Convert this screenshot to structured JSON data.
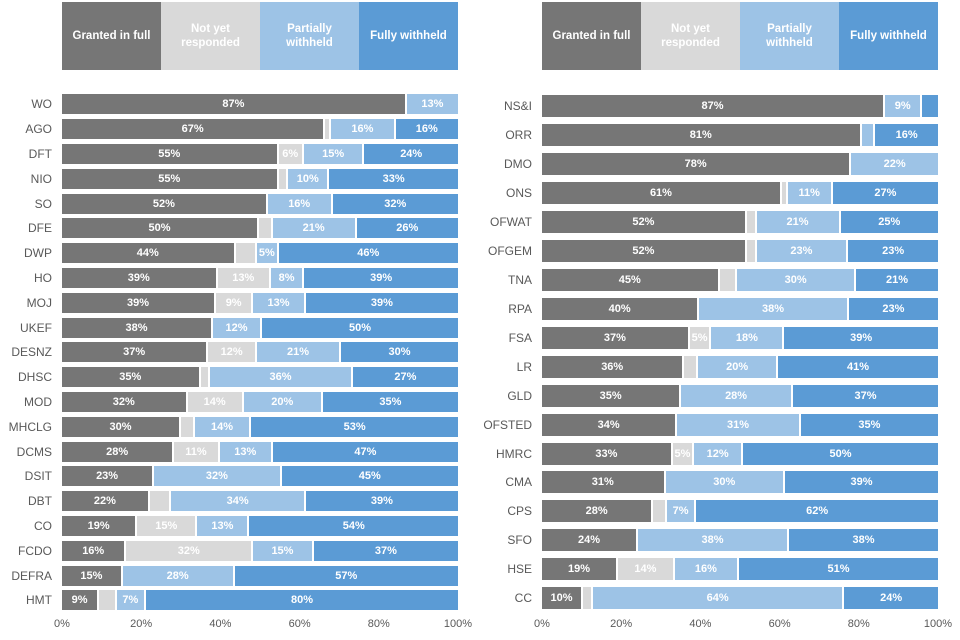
{
  "legend": [
    {
      "key": "granted-in-full",
      "label": "Granted in full",
      "color": "#767676",
      "text_color": "#ffffff"
    },
    {
      "key": "not-yet-responded",
      "label": "Not yet responded",
      "color": "#d9d9d9",
      "text_color": "#ffffff"
    },
    {
      "key": "partially-withheld",
      "label": "Partially withheld",
      "color": "#9dc3e6",
      "text_color": "#ffffff"
    },
    {
      "key": "fully-withheld",
      "label": "Fully withheld",
      "color": "#5b9bd5",
      "text_color": "#ffffff"
    }
  ],
  "axis_ticks": [
    "0%",
    "20%",
    "40%",
    "60%",
    "80%",
    "100%"
  ],
  "chart_data": [
    {
      "type": "bar",
      "orientation": "horizontal",
      "stacked": true,
      "xlim": [
        0,
        100
      ],
      "series_names": [
        "Granted in full",
        "Not yet responded",
        "Partially withheld",
        "Fully withheld"
      ],
      "rows": [
        {
          "category": "WO",
          "values": [
            87,
            0,
            13,
            0
          ],
          "labels": [
            "87%",
            "",
            "13%",
            ""
          ]
        },
        {
          "category": "AGO",
          "values": [
            67,
            1,
            16,
            16
          ],
          "labels": [
            "67%",
            "",
            "16%",
            "16%"
          ]
        },
        {
          "category": "DFT",
          "values": [
            55,
            6,
            15,
            24
          ],
          "labels": [
            "55%",
            "6%",
            "15%",
            "24%"
          ]
        },
        {
          "category": "NIO",
          "values": [
            55,
            2,
            10,
            33
          ],
          "labels": [
            "55%",
            "",
            "10%",
            "33%"
          ]
        },
        {
          "category": "SO",
          "values": [
            52,
            0,
            16,
            32
          ],
          "labels": [
            "52%",
            "",
            "16%",
            "32%"
          ]
        },
        {
          "category": "DFE",
          "values": [
            50,
            3,
            21,
            26
          ],
          "labels": [
            "50%",
            "",
            "21%",
            "26%"
          ]
        },
        {
          "category": "DWP",
          "values": [
            44,
            5,
            5,
            46
          ],
          "labels": [
            "44%",
            "",
            "5%",
            "46%"
          ]
        },
        {
          "category": "HO",
          "values": [
            39,
            13,
            8,
            39
          ],
          "labels": [
            "39%",
            "13%",
            "8%",
            "39%"
          ]
        },
        {
          "category": "MOJ",
          "values": [
            39,
            9,
            13,
            39
          ],
          "labels": [
            "39%",
            "9%",
            "13%",
            "39%"
          ]
        },
        {
          "category": "UKEF",
          "values": [
            38,
            0,
            12,
            50
          ],
          "labels": [
            "38%",
            "",
            "12%",
            "50%"
          ]
        },
        {
          "category": "DESNZ",
          "values": [
            37,
            12,
            21,
            30
          ],
          "labels": [
            "37%",
            "12%",
            "21%",
            "30%"
          ]
        },
        {
          "category": "DHSC",
          "values": [
            35,
            2,
            36,
            27
          ],
          "labels": [
            "35%",
            "",
            "36%",
            "27%"
          ]
        },
        {
          "category": "MOD",
          "values": [
            32,
            14,
            20,
            35
          ],
          "labels": [
            "32%",
            "14%",
            "20%",
            "35%"
          ]
        },
        {
          "category": "MHCLG",
          "values": [
            30,
            3,
            14,
            53
          ],
          "labels": [
            "30%",
            "",
            "14%",
            "53%"
          ]
        },
        {
          "category": "DCMS",
          "values": [
            28,
            11,
            13,
            47
          ],
          "labels": [
            "28%",
            "11%",
            "13%",
            "47%"
          ]
        },
        {
          "category": "DSIT",
          "values": [
            23,
            0,
            32,
            45
          ],
          "labels": [
            "23%",
            "",
            "32%",
            "45%"
          ]
        },
        {
          "category": "DBT",
          "values": [
            22,
            5,
            34,
            39
          ],
          "labels": [
            "22%",
            "",
            "34%",
            "39%"
          ]
        },
        {
          "category": "CO",
          "values": [
            19,
            15,
            13,
            54
          ],
          "labels": [
            "19%",
            "15%",
            "13%",
            "54%"
          ]
        },
        {
          "category": "FCDO",
          "values": [
            16,
            32,
            15,
            37
          ],
          "labels": [
            "16%",
            "32%",
            "15%",
            "37%"
          ]
        },
        {
          "category": "DEFRA",
          "values": [
            15,
            0,
            28,
            57
          ],
          "labels": [
            "15%",
            "",
            "28%",
            "57%"
          ]
        },
        {
          "category": "HMT",
          "values": [
            9,
            4,
            7,
            80
          ],
          "labels": [
            "9%",
            "",
            "7%",
            "80%"
          ]
        }
      ]
    },
    {
      "type": "bar",
      "orientation": "horizontal",
      "stacked": true,
      "xlim": [
        0,
        100
      ],
      "series_names": [
        "Granted in full",
        "Not yet responded",
        "Partially withheld",
        "Fully withheld"
      ],
      "rows": [
        {
          "category": "NS&I",
          "values": [
            87,
            0,
            9,
            4
          ],
          "labels": [
            "87%",
            "",
            "9%",
            ""
          ]
        },
        {
          "category": "ORR",
          "values": [
            81,
            0,
            3,
            16
          ],
          "labels": [
            "81%",
            "",
            "",
            "16%"
          ]
        },
        {
          "category": "DMO",
          "values": [
            78,
            0,
            22,
            0
          ],
          "labels": [
            "78%",
            "",
            "22%",
            ""
          ]
        },
        {
          "category": "ONS",
          "values": [
            61,
            1,
            11,
            27
          ],
          "labels": [
            "61%",
            "",
            "11%",
            "27%"
          ]
        },
        {
          "category": "OFWAT",
          "values": [
            52,
            2,
            21,
            25
          ],
          "labels": [
            "52%",
            "",
            "21%",
            "25%"
          ]
        },
        {
          "category": "OFGEM",
          "values": [
            52,
            2,
            23,
            23
          ],
          "labels": [
            "52%",
            "",
            "23%",
            "23%"
          ]
        },
        {
          "category": "TNA",
          "values": [
            45,
            4,
            30,
            21
          ],
          "labels": [
            "45%",
            "",
            "30%",
            "21%"
          ]
        },
        {
          "category": "RPA",
          "values": [
            40,
            0,
            38,
            23
          ],
          "labels": [
            "40%",
            "",
            "38%",
            "23%"
          ]
        },
        {
          "category": "FSA",
          "values": [
            37,
            5,
            18,
            39
          ],
          "labels": [
            "37%",
            "5%",
            "18%",
            "39%"
          ]
        },
        {
          "category": "LR",
          "values": [
            36,
            3,
            20,
            41
          ],
          "labels": [
            "36%",
            "",
            "20%",
            "41%"
          ]
        },
        {
          "category": "GLD",
          "values": [
            35,
            0,
            28,
            37
          ],
          "labels": [
            "35%",
            "",
            "28%",
            "37%"
          ]
        },
        {
          "category": "OFSTED",
          "values": [
            34,
            0,
            31,
            35
          ],
          "labels": [
            "34%",
            "",
            "31%",
            "35%"
          ]
        },
        {
          "category": "HMRC",
          "values": [
            33,
            5,
            12,
            50
          ],
          "labels": [
            "33%",
            "5%",
            "12%",
            "50%"
          ]
        },
        {
          "category": "CMA",
          "values": [
            31,
            0,
            30,
            39
          ],
          "labels": [
            "31%",
            "",
            "30%",
            "39%"
          ]
        },
        {
          "category": "CPS",
          "values": [
            28,
            3,
            7,
            62
          ],
          "labels": [
            "28%",
            "",
            "7%",
            "62%"
          ]
        },
        {
          "category": "SFO",
          "values": [
            24,
            0,
            38,
            38
          ],
          "labels": [
            "24%",
            "",
            "38%",
            "38%"
          ]
        },
        {
          "category": "HSE",
          "values": [
            19,
            14,
            16,
            51
          ],
          "labels": [
            "19%",
            "14%",
            "16%",
            "51%"
          ]
        },
        {
          "category": "CC",
          "values": [
            10,
            2,
            64,
            24
          ],
          "labels": [
            "10%",
            "",
            "64%",
            "24%"
          ]
        }
      ]
    }
  ]
}
